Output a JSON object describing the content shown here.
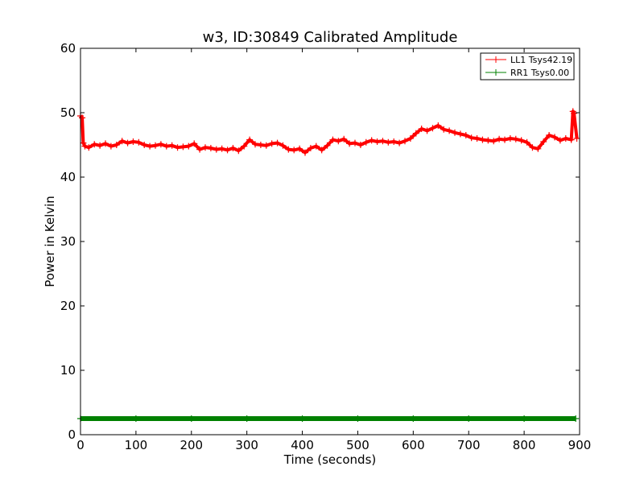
{
  "chart_data": {
    "type": "line",
    "title": "w3, ID:30849 Calibrated Amplitude",
    "xlabel": "Time (seconds)",
    "ylabel": "Power in Kelvin",
    "xlim": [
      0,
      900
    ],
    "ylim": [
      0,
      60
    ],
    "xticks": [
      0,
      100,
      200,
      300,
      400,
      500,
      600,
      700,
      800,
      900
    ],
    "yticks": [
      0,
      10,
      20,
      30,
      40,
      50,
      60
    ],
    "grid": false,
    "legend": "top-right",
    "series": [
      {
        "name": "LL1 Tsys42.19",
        "color": "#ff0000",
        "marker": "+",
        "x": [
          0,
          3,
          5,
          8,
          15,
          25,
          35,
          45,
          55,
          65,
          75,
          85,
          95,
          105,
          115,
          125,
          135,
          145,
          155,
          165,
          175,
          185,
          195,
          205,
          215,
          225,
          235,
          245,
          255,
          265,
          275,
          285,
          295,
          305,
          315,
          325,
          335,
          345,
          355,
          365,
          375,
          385,
          395,
          405,
          415,
          425,
          435,
          445,
          455,
          465,
          475,
          485,
          495,
          505,
          515,
          525,
          535,
          545,
          555,
          565,
          575,
          585,
          595,
          605,
          615,
          625,
          635,
          645,
          655,
          665,
          675,
          685,
          695,
          705,
          715,
          725,
          735,
          745,
          755,
          765,
          775,
          785,
          795,
          805,
          815,
          825,
          835,
          845,
          855,
          865,
          875,
          885,
          888,
          890,
          895
        ],
        "y": [
          49.5,
          49.2,
          45.3,
          44.8,
          44.6,
          45.1,
          44.9,
          45.2,
          44.8,
          45.0,
          45.6,
          45.3,
          45.5,
          45.4,
          45.0,
          44.8,
          44.9,
          45.1,
          44.8,
          44.9,
          44.6,
          44.7,
          44.8,
          45.2,
          44.3,
          44.6,
          44.5,
          44.3,
          44.4,
          44.2,
          44.5,
          44.1,
          44.8,
          45.8,
          45.1,
          45.0,
          44.9,
          45.2,
          45.3,
          44.9,
          44.3,
          44.2,
          44.4,
          43.8,
          44.5,
          44.8,
          44.2,
          44.9,
          45.8,
          45.6,
          45.9,
          45.2,
          45.3,
          45.0,
          45.4,
          45.7,
          45.5,
          45.6,
          45.4,
          45.5,
          45.3,
          45.6,
          46.0,
          46.8,
          47.5,
          47.2,
          47.6,
          48.0,
          47.4,
          47.2,
          46.9,
          46.7,
          46.5,
          46.1,
          46.0,
          45.8,
          45.7,
          45.6,
          45.9,
          45.8,
          46.0,
          45.9,
          45.7,
          45.4,
          44.6,
          44.4,
          45.5,
          46.5,
          46.2,
          45.7,
          46.0,
          45.8,
          50.2,
          49.9,
          46.0
        ]
      },
      {
        "name": "RR1 Tsys0.00",
        "color": "#008000",
        "marker": "+",
        "x": [
          0,
          100,
          200,
          300,
          400,
          500,
          600,
          700,
          800,
          893
        ],
        "y": [
          2.5,
          2.5,
          2.5,
          2.5,
          2.5,
          2.5,
          2.5,
          2.5,
          2.5,
          2.5
        ]
      }
    ]
  }
}
